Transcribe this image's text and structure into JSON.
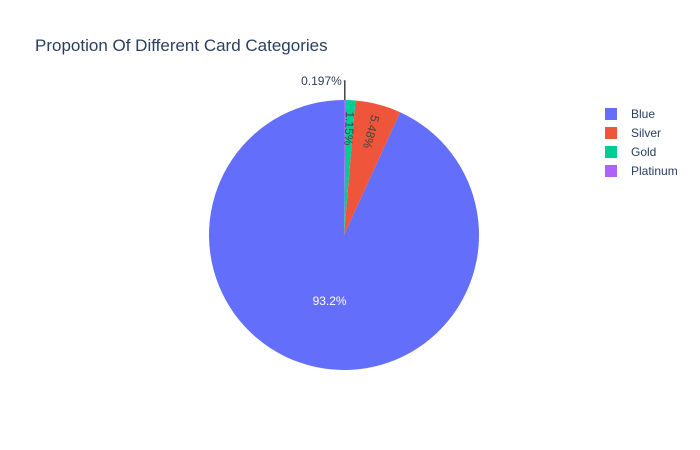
{
  "chart_data": {
    "type": "pie",
    "title": "Propotion Of Different Card Categories",
    "categories": [
      "Blue",
      "Silver",
      "Gold",
      "Platinum"
    ],
    "values": [
      93.2,
      5.48,
      1.15,
      0.197
    ],
    "labels": [
      "93.2%",
      "5.48%",
      "1.15%",
      "0.197%"
    ],
    "colors": [
      "#636efa",
      "#EF553B",
      "#00cc96",
      "#ab63fa"
    ],
    "legend_placement": "top-right",
    "direction": "counterclockwise",
    "rotation": "starts at 12 o'clock"
  }
}
